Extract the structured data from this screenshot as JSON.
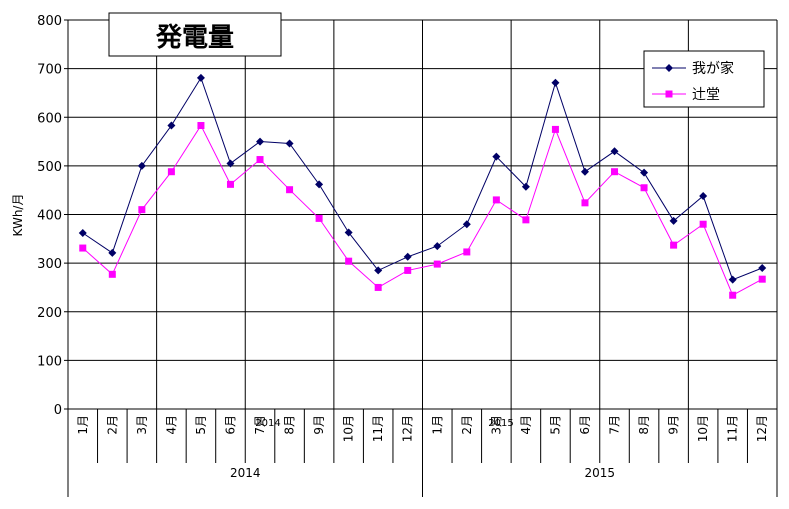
{
  "chart_data": {
    "type": "line",
    "title": "発電量",
    "ylabel": "KWh/月",
    "ylim": [
      0,
      800
    ],
    "yticks": [
      0,
      100,
      200,
      300,
      400,
      500,
      600,
      700,
      800
    ],
    "grid": true,
    "legend_position": "top-right",
    "categories": [
      "1月",
      "2月",
      "3月",
      "4月",
      "5月",
      "6月",
      "7月",
      "8月",
      "9月",
      "10月",
      "11月",
      "12月",
      "1月",
      "2月",
      "3月",
      "4月",
      "5月",
      "6月",
      "7月",
      "8月",
      "9月",
      "10月",
      "11月",
      "12月"
    ],
    "groups": [
      {
        "label": "2014",
        "count": 12
      },
      {
        "label": "2015",
        "count": 12
      }
    ],
    "overlay_labels": [
      "2014",
      "2015"
    ],
    "series": [
      {
        "name": "我が家",
        "color": "#000066",
        "marker": "diamond",
        "values": [
          362,
          321,
          500,
          583,
          681,
          505,
          550,
          546,
          462,
          363,
          285,
          313,
          335,
          380,
          519,
          457,
          671,
          488,
          530,
          486,
          387,
          438,
          266,
          290
        ]
      },
      {
        "name": "辻堂",
        "color": "#ff00ff",
        "marker": "square",
        "values": [
          331,
          277,
          410,
          488,
          583,
          462,
          513,
          451,
          392,
          304,
          250,
          285,
          298,
          323,
          430,
          389,
          575,
          424,
          488,
          455,
          337,
          380,
          234,
          267
        ]
      }
    ]
  }
}
